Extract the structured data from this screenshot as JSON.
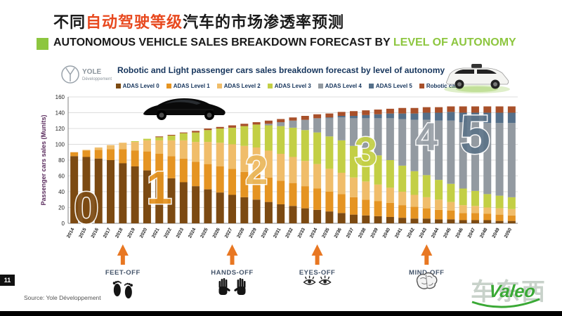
{
  "slide": {
    "title_cn": {
      "prefix": "不同",
      "highlight": "自动驾驶等级",
      "suffix": "汽车的市场渗透率预测"
    },
    "title_en": {
      "prefix": "AUTONOMOUS VEHICLE SALES BREAKDOWN FORECAST BY ",
      "highlight": "LEVEL OF AUTONOMY"
    },
    "accent_green": "#8dc63f",
    "accent_orange": "#e8491f",
    "page_number": "11",
    "source": "Source: Yole Développement",
    "brand": "Valeo",
    "watermark": "车东西"
  },
  "chart": {
    "title": "Robotic and Light passenger cars sales breakdown forecast by level of autonomy",
    "logo_text": "YOLE",
    "logo_subtext": "Développement",
    "milestone_arrow_color": "#e87722",
    "milestone_label_color": "#44546a"
  },
  "chart_data": {
    "type": "bar",
    "stacked": true,
    "title": "Robotic and Light passenger cars sales breakdown forecast by level of autonomy",
    "xlabel": "",
    "ylabel": "Passenger cars sales (Munits)",
    "ylim": [
      0,
      160
    ],
    "ytick_step": 20,
    "grid": true,
    "legend_position": "top",
    "categories": [
      "2014",
      "2015",
      "2016",
      "2017",
      "2018",
      "2019",
      "2020",
      "2021",
      "2022",
      "2023",
      "2024",
      "2025",
      "2026",
      "2027",
      "2028",
      "2029",
      "2030",
      "2031",
      "2032",
      "2033",
      "2034",
      "2035",
      "2036",
      "2037",
      "2038",
      "2039",
      "2040",
      "2041",
      "2042",
      "2043",
      "2044",
      "2045",
      "2046",
      "2047",
      "2048",
      "2049",
      "2050"
    ],
    "series": [
      {
        "name": "ADAS Level 0",
        "color": "#7c4a12",
        "values": [
          85,
          84,
          82,
          80,
          76,
          72,
          67,
          62,
          57,
          52,
          47,
          43,
          39,
          36,
          33,
          30,
          27,
          24,
          22,
          19,
          17,
          15,
          13,
          11,
          10,
          9,
          8,
          7,
          6,
          6,
          5,
          5,
          4,
          4,
          4,
          3,
          3
        ]
      },
      {
        "name": "ADAS Level 1",
        "color": "#e59422",
        "values": [
          5,
          8,
          11,
          14,
          18,
          20,
          24,
          26,
          28,
          30,
          31,
          32,
          33,
          33,
          32,
          32,
          31,
          30,
          29,
          28,
          27,
          25,
          24,
          22,
          20,
          19,
          18,
          16,
          15,
          13,
          12,
          11,
          9,
          9,
          8,
          8,
          7
        ]
      },
      {
        "name": "ADAS Level 2",
        "color": "#f0bd6a",
        "values": [
          0,
          1,
          3,
          5,
          8,
          11,
          14,
          17,
          20,
          23,
          25,
          28,
          30,
          31,
          33,
          34,
          34,
          34,
          33,
          32,
          31,
          29,
          27,
          25,
          23,
          21,
          19,
          17,
          15,
          14,
          13,
          11,
          10,
          9,
          8,
          8,
          8
        ]
      },
      {
        "name": "ADAS Level 3",
        "color": "#c3cf45",
        "values": [
          0,
          0,
          0,
          0,
          0,
          1,
          2,
          4,
          6,
          9,
          12,
          15,
          18,
          21,
          25,
          29,
          32,
          35,
          37,
          39,
          40,
          41,
          41,
          40,
          39,
          37,
          35,
          33,
          30,
          28,
          25,
          23,
          21,
          19,
          17,
          16,
          15
        ]
      },
      {
        "name": "ADAS Level 4",
        "color": "#939aa1",
        "values": [
          0,
          0,
          0,
          0,
          0,
          0,
          0,
          0,
          0,
          0,
          0,
          0,
          0,
          0,
          0,
          0,
          2,
          5,
          9,
          13,
          18,
          23,
          29,
          35,
          41,
          47,
          53,
          59,
          65,
          70,
          75,
          80,
          84,
          87,
          90,
          92,
          94
        ]
      },
      {
        "name": "ADAS Level 5",
        "color": "#55708a",
        "values": [
          0,
          0,
          0,
          0,
          0,
          0,
          0,
          0,
          0,
          0,
          0,
          0,
          0,
          0,
          0,
          0,
          0,
          0,
          0,
          0,
          0,
          1,
          2,
          3,
          4,
          5,
          6,
          7,
          8,
          9,
          10,
          11,
          12,
          12,
          13,
          13,
          13
        ]
      },
      {
        "name": "Robotic cars",
        "color": "#a8502a",
        "values": [
          0,
          0,
          0,
          0,
          0,
          0,
          0,
          1,
          1,
          1,
          2,
          2,
          2,
          3,
          3,
          3,
          4,
          4,
          4,
          5,
          5,
          5,
          5,
          6,
          6,
          6,
          6,
          7,
          7,
          7,
          7,
          7,
          8,
          8,
          8,
          8,
          8
        ]
      }
    ]
  },
  "overlay_numbers": [
    {
      "text": "0",
      "year": "2015",
      "color": "#7c4a12"
    },
    {
      "text": "1",
      "year": "2021",
      "color": "#e59422"
    },
    {
      "text": "2",
      "year": "2029",
      "color": "#eab75b"
    },
    {
      "text": "3",
      "year": "2038",
      "color": "#c3cf45"
    },
    {
      "text": "4",
      "year": "2043",
      "color": "#9aa1a8"
    },
    {
      "text": "5",
      "year": "2047",
      "color": "#5d7488"
    }
  ],
  "milestones": [
    {
      "label": "FEET-OFF",
      "year": "2018",
      "icon": "feet-icon"
    },
    {
      "label": "HANDS-OFF",
      "year": "2027",
      "icon": "hands-icon"
    },
    {
      "label": "EYES-OFF",
      "year": "2034",
      "icon": "eyes-icon"
    },
    {
      "label": "MIND-OFF",
      "year": "2043",
      "icon": "brain-icon"
    }
  ]
}
